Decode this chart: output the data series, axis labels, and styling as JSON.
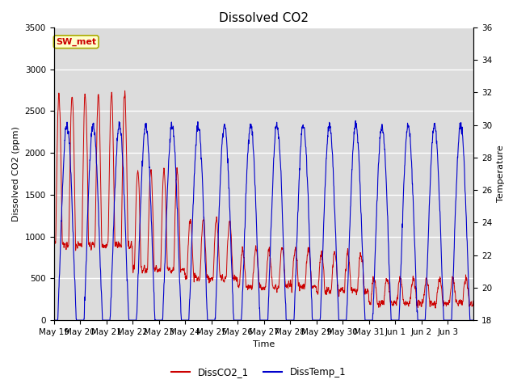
{
  "title": "Dissolved CO2",
  "xlabel": "Time",
  "ylabel_left": "Dissolved CO2 (ppm)",
  "ylabel_right": "Temperature",
  "legend_label1": "DissCO2_1",
  "legend_label2": "DissTemp_1",
  "annotation": "SW_met",
  "ylim_left": [
    0,
    3500
  ],
  "ylim_right": [
    18,
    36
  ],
  "color_co2": "#CC0000",
  "color_temp": "#0000CC",
  "bg_color": "#DCDCDC",
  "grid_color": "white",
  "x_tick_labels": [
    "May 19",
    "May 20",
    "May 21",
    "May 22",
    "May 23",
    "May 24",
    "May 25",
    "May 26",
    "May 27",
    "May 28",
    "May 29",
    "May 30",
    "May 31",
    "Jun 1",
    "Jun 2",
    "Jun 3"
  ],
  "title_fontsize": 11,
  "label_fontsize": 8,
  "tick_fontsize": 7.5,
  "yticks_left": [
    0,
    500,
    1000,
    1500,
    2000,
    2500,
    3000,
    3500
  ],
  "yticks_right": [
    18,
    20,
    22,
    24,
    26,
    28,
    30,
    32,
    34,
    36
  ]
}
